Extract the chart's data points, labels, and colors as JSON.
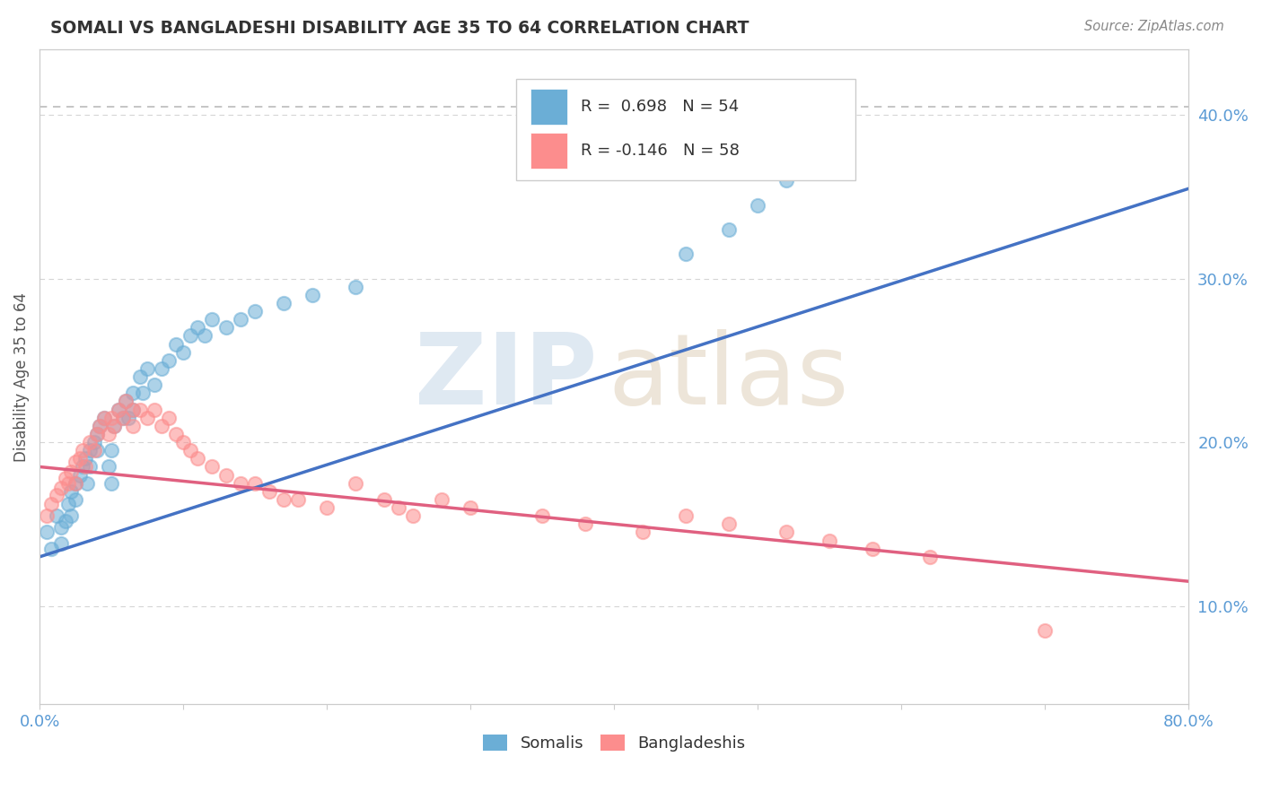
{
  "title": "SOMALI VS BANGLADESHI DISABILITY AGE 35 TO 64 CORRELATION CHART",
  "source_text": "Source: ZipAtlas.com",
  "ylabel": "Disability Age 35 to 64",
  "xlim": [
    0.0,
    0.8
  ],
  "ylim": [
    0.04,
    0.44
  ],
  "x_tick_positions": [
    0.0,
    0.1,
    0.2,
    0.3,
    0.4,
    0.5,
    0.6,
    0.7,
    0.8
  ],
  "x_tick_labels": [
    "0.0%",
    "",
    "",
    "",
    "",
    "",
    "",
    "",
    "80.0%"
  ],
  "y_tick_positions": [
    0.1,
    0.2,
    0.3,
    0.4
  ],
  "y_tick_labels": [
    "10.0%",
    "20.0%",
    "30.0%",
    "40.0%"
  ],
  "somali_color": "#6baed6",
  "bangladeshi_color": "#fc8d8d",
  "somali_R": 0.698,
  "somali_N": 54,
  "bangladeshi_R": -0.146,
  "bangladeshi_N": 58,
  "legend_somali_label": "Somalis",
  "legend_bangladeshi_label": "Bangladeshis",
  "somali_points_x": [
    0.005,
    0.008,
    0.012,
    0.015,
    0.015,
    0.018,
    0.02,
    0.022,
    0.022,
    0.025,
    0.025,
    0.028,
    0.03,
    0.032,
    0.033,
    0.035,
    0.035,
    0.038,
    0.04,
    0.04,
    0.042,
    0.045,
    0.048,
    0.05,
    0.05,
    0.052,
    0.055,
    0.058,
    0.06,
    0.062,
    0.065,
    0.065,
    0.07,
    0.072,
    0.075,
    0.08,
    0.085,
    0.09,
    0.095,
    0.1,
    0.105,
    0.11,
    0.115,
    0.12,
    0.13,
    0.14,
    0.15,
    0.17,
    0.19,
    0.22,
    0.45,
    0.48,
    0.5,
    0.52
  ],
  "somali_points_y": [
    0.145,
    0.135,
    0.155,
    0.148,
    0.138,
    0.152,
    0.162,
    0.17,
    0.155,
    0.175,
    0.165,
    0.18,
    0.185,
    0.19,
    0.175,
    0.195,
    0.185,
    0.2,
    0.205,
    0.195,
    0.21,
    0.215,
    0.185,
    0.195,
    0.175,
    0.21,
    0.22,
    0.215,
    0.225,
    0.215,
    0.23,
    0.22,
    0.24,
    0.23,
    0.245,
    0.235,
    0.245,
    0.25,
    0.26,
    0.255,
    0.265,
    0.27,
    0.265,
    0.275,
    0.27,
    0.275,
    0.28,
    0.285,
    0.29,
    0.295,
    0.315,
    0.33,
    0.345,
    0.36
  ],
  "bangladeshi_points_x": [
    0.005,
    0.008,
    0.012,
    0.015,
    0.018,
    0.02,
    0.022,
    0.025,
    0.025,
    0.028,
    0.03,
    0.032,
    0.035,
    0.038,
    0.04,
    0.042,
    0.045,
    0.048,
    0.05,
    0.052,
    0.055,
    0.058,
    0.06,
    0.065,
    0.065,
    0.07,
    0.075,
    0.08,
    0.085,
    0.09,
    0.095,
    0.1,
    0.105,
    0.11,
    0.12,
    0.13,
    0.14,
    0.15,
    0.16,
    0.17,
    0.18,
    0.2,
    0.22,
    0.24,
    0.25,
    0.26,
    0.28,
    0.3,
    0.35,
    0.38,
    0.42,
    0.45,
    0.48,
    0.52,
    0.55,
    0.58,
    0.62,
    0.7
  ],
  "bangladeshi_points_y": [
    0.155,
    0.162,
    0.168,
    0.172,
    0.178,
    0.175,
    0.182,
    0.188,
    0.175,
    0.19,
    0.195,
    0.185,
    0.2,
    0.195,
    0.205,
    0.21,
    0.215,
    0.205,
    0.215,
    0.21,
    0.22,
    0.215,
    0.225,
    0.22,
    0.21,
    0.22,
    0.215,
    0.22,
    0.21,
    0.215,
    0.205,
    0.2,
    0.195,
    0.19,
    0.185,
    0.18,
    0.175,
    0.175,
    0.17,
    0.165,
    0.165,
    0.16,
    0.175,
    0.165,
    0.16,
    0.155,
    0.165,
    0.16,
    0.155,
    0.15,
    0.145,
    0.155,
    0.15,
    0.145,
    0.14,
    0.135,
    0.13,
    0.085
  ],
  "somali_trendline_x": [
    0.0,
    0.8
  ],
  "somali_trendline_y": [
    0.13,
    0.355
  ],
  "bangladeshi_trendline_x": [
    0.0,
    0.8
  ],
  "bangladeshi_trendline_y": [
    0.185,
    0.115
  ],
  "dashed_line_y": 0.405,
  "background_color": "#ffffff",
  "plot_bg_color": "#ffffff",
  "grid_color": "#d5d5d5",
  "title_color": "#333333",
  "tick_color": "#5b9bd5",
  "watermark_color_zip": "#b0c8e0",
  "watermark_color_atlas": "#d4c0a0"
}
